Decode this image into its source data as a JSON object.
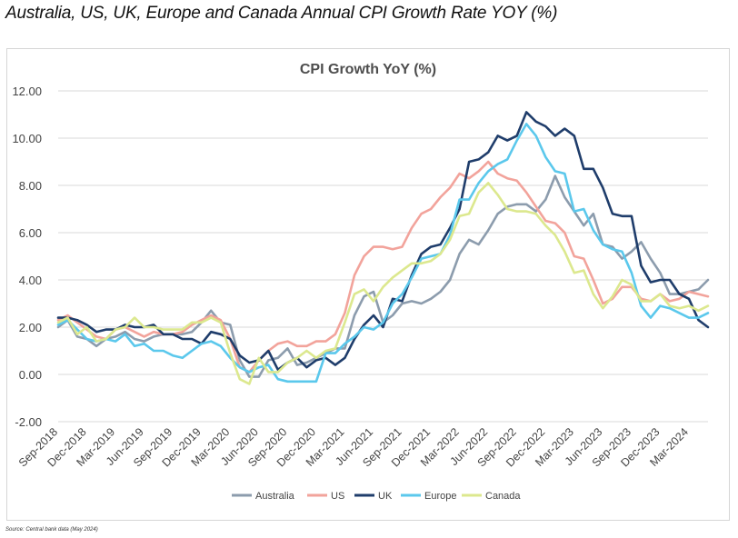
{
  "page_title": "Australia, US, UK, Europe and Canada Annual CPI Growth Rate YOY (%)",
  "source_note": "Source: Central bank data (May 2024)",
  "chart_data": {
    "type": "line",
    "title": "CPI Growth YoY (%)",
    "xlabel": "",
    "ylabel": "",
    "ylim": [
      -2,
      12
    ],
    "y_ticks": [
      -2,
      0,
      2,
      4,
      6,
      8,
      10,
      12
    ],
    "y_tick_labels": [
      "-2.00",
      "0.00",
      "2.00",
      "4.00",
      "6.00",
      "8.00",
      "10.00",
      "12.00"
    ],
    "grid": "horizontal",
    "legend_position": "bottom",
    "x": [
      "Sep-2018",
      "Oct-2018",
      "Nov-2018",
      "Dec-2018",
      "Jan-2019",
      "Feb-2019",
      "Mar-2019",
      "Apr-2019",
      "May-2019",
      "Jun-2019",
      "Jul-2019",
      "Aug-2019",
      "Sep-2019",
      "Oct-2019",
      "Nov-2019",
      "Dec-2019",
      "Jan-2020",
      "Feb-2020",
      "Mar-2020",
      "Apr-2020",
      "May-2020",
      "Jun-2020",
      "Jul-2020",
      "Aug-2020",
      "Sep-2020",
      "Oct-2020",
      "Nov-2020",
      "Dec-2020",
      "Jan-2021",
      "Feb-2021",
      "Mar-2021",
      "Apr-2021",
      "May-2021",
      "Jun-2021",
      "Jul-2021",
      "Aug-2021",
      "Sep-2021",
      "Oct-2021",
      "Nov-2021",
      "Dec-2021",
      "Jan-2022",
      "Feb-2022",
      "Mar-2022",
      "Apr-2022",
      "May-2022",
      "Jun-2022",
      "Jul-2022",
      "Aug-2022",
      "Sep-2022",
      "Oct-2022",
      "Nov-2022",
      "Dec-2022",
      "Jan-2023",
      "Feb-2023",
      "Mar-2023",
      "Apr-2023",
      "May-2023",
      "Jun-2023",
      "Jul-2023",
      "Aug-2023",
      "Sep-2023",
      "Oct-2023",
      "Nov-2023",
      "Dec-2023",
      "Jan-2024",
      "Feb-2024",
      "Mar-2024",
      "Apr-2024",
      "May-2024"
    ],
    "x_tick_labels": [
      "Sep-2018",
      "Dec-2018",
      "Mar-2019",
      "Jun-2019",
      "Sep-2019",
      "Dec-2019",
      "Mar-2020",
      "Jun-2020",
      "Sep-2020",
      "Dec-2020",
      "Mar-2021",
      "Jun-2021",
      "Sep-2021",
      "Dec-2021",
      "Mar-2022",
      "Jun-2022",
      "Sep-2022",
      "Dec-2022",
      "Mar-2023",
      "Jun-2023",
      "Sep-2023",
      "Dec-2023",
      "Mar-2024"
    ],
    "series": [
      {
        "name": "Australia",
        "color": "#8c9cad",
        "values": [
          2.0,
          2.3,
          1.6,
          1.5,
          1.2,
          1.5,
          1.6,
          1.8,
          1.5,
          1.4,
          1.6,
          1.7,
          1.7,
          1.7,
          1.8,
          2.2,
          2.7,
          2.2,
          2.1,
          0.6,
          -0.1,
          -0.1,
          0.6,
          0.7,
          1.1,
          0.4,
          0.5,
          0.7,
          0.9,
          1.1,
          1.1,
          2.5,
          3.3,
          3.5,
          2.2,
          2.5,
          3.0,
          3.1,
          3.0,
          3.2,
          3.5,
          4.0,
          5.1,
          5.7,
          5.5,
          6.1,
          6.8,
          7.1,
          7.2,
          7.2,
          6.9,
          7.4,
          8.4,
          7.5,
          6.9,
          6.3,
          6.8,
          5.5,
          5.4,
          4.9,
          5.2,
          5.6,
          4.9,
          4.3,
          3.4,
          3.4,
          3.5,
          3.6,
          4.0
        ]
      },
      {
        "name": "US",
        "color": "#f2a39b",
        "values": [
          2.3,
          2.5,
          2.2,
          1.9,
          1.6,
          1.5,
          1.9,
          2.0,
          1.8,
          1.6,
          1.8,
          1.7,
          1.7,
          1.8,
          2.1,
          2.3,
          2.5,
          2.3,
          1.5,
          0.3,
          0.1,
          0.6,
          1.0,
          1.3,
          1.4,
          1.2,
          1.2,
          1.4,
          1.4,
          1.7,
          2.6,
          4.2,
          5.0,
          5.4,
          5.4,
          5.3,
          5.4,
          6.2,
          6.8,
          7.0,
          7.5,
          7.9,
          8.5,
          8.3,
          8.6,
          9.0,
          8.5,
          8.3,
          8.2,
          7.7,
          7.1,
          6.5,
          6.4,
          6.0,
          5.0,
          4.9,
          4.0,
          3.0,
          3.2,
          3.7,
          3.7,
          3.2,
          3.1,
          3.4,
          3.1,
          3.2,
          3.5,
          3.4,
          3.3
        ]
      },
      {
        "name": "UK",
        "color": "#1f3d6b",
        "values": [
          2.4,
          2.4,
          2.3,
          2.1,
          1.8,
          1.9,
          1.9,
          2.1,
          2.0,
          2.0,
          2.1,
          1.7,
          1.7,
          1.5,
          1.5,
          1.3,
          1.8,
          1.7,
          1.5,
          0.8,
          0.5,
          0.6,
          1.0,
          0.2,
          0.5,
          0.7,
          0.3,
          0.6,
          0.7,
          0.4,
          0.7,
          1.5,
          2.1,
          2.5,
          2.0,
          3.2,
          3.1,
          4.2,
          5.1,
          5.4,
          5.5,
          6.2,
          7.0,
          9.0,
          9.1,
          9.4,
          10.1,
          9.9,
          10.1,
          11.1,
          10.7,
          10.5,
          10.1,
          10.4,
          10.1,
          8.7,
          8.7,
          7.9,
          6.8,
          6.7,
          6.7,
          4.6,
          3.9,
          4.0,
          4.0,
          3.4,
          3.2,
          2.3,
          2.0
        ]
      },
      {
        "name": "Europe",
        "color": "#5bc8ec",
        "values": [
          2.1,
          2.3,
          1.9,
          1.5,
          1.4,
          1.5,
          1.4,
          1.7,
          1.2,
          1.3,
          1.0,
          1.0,
          0.8,
          0.7,
          1.0,
          1.3,
          1.4,
          1.2,
          0.7,
          0.3,
          0.1,
          0.3,
          0.4,
          -0.2,
          -0.3,
          -0.3,
          -0.3,
          -0.3,
          0.9,
          0.9,
          1.3,
          1.6,
          2.0,
          1.9,
          2.2,
          3.0,
          3.4,
          4.1,
          4.9,
          5.0,
          5.1,
          5.9,
          7.4,
          7.4,
          8.1,
          8.6,
          8.9,
          9.1,
          9.9,
          10.6,
          10.1,
          9.2,
          8.6,
          8.5,
          6.9,
          7.0,
          6.1,
          5.5,
          5.3,
          5.2,
          4.3,
          2.9,
          2.4,
          2.9,
          2.8,
          2.6,
          2.4,
          2.4,
          2.6
        ]
      },
      {
        "name": "Canada",
        "color": "#dce88e",
        "values": [
          2.2,
          2.4,
          1.7,
          2.0,
          1.4,
          1.5,
          1.9,
          2.0,
          2.4,
          2.0,
          2.0,
          1.9,
          1.9,
          1.9,
          2.2,
          2.2,
          2.4,
          2.2,
          0.9,
          -0.2,
          -0.4,
          0.7,
          0.1,
          0.1,
          0.5,
          0.7,
          1.0,
          0.7,
          1.0,
          1.1,
          2.2,
          3.4,
          3.6,
          3.1,
          3.7,
          4.1,
          4.4,
          4.7,
          4.7,
          4.8,
          5.1,
          5.7,
          6.7,
          6.8,
          7.7,
          8.1,
          7.6,
          7.0,
          6.9,
          6.9,
          6.8,
          6.3,
          5.9,
          5.2,
          4.3,
          4.4,
          3.4,
          2.8,
          3.3,
          4.0,
          3.8,
          3.1,
          3.1,
          3.4,
          2.9,
          2.8,
          2.9,
          2.7,
          2.9
        ]
      }
    ]
  }
}
